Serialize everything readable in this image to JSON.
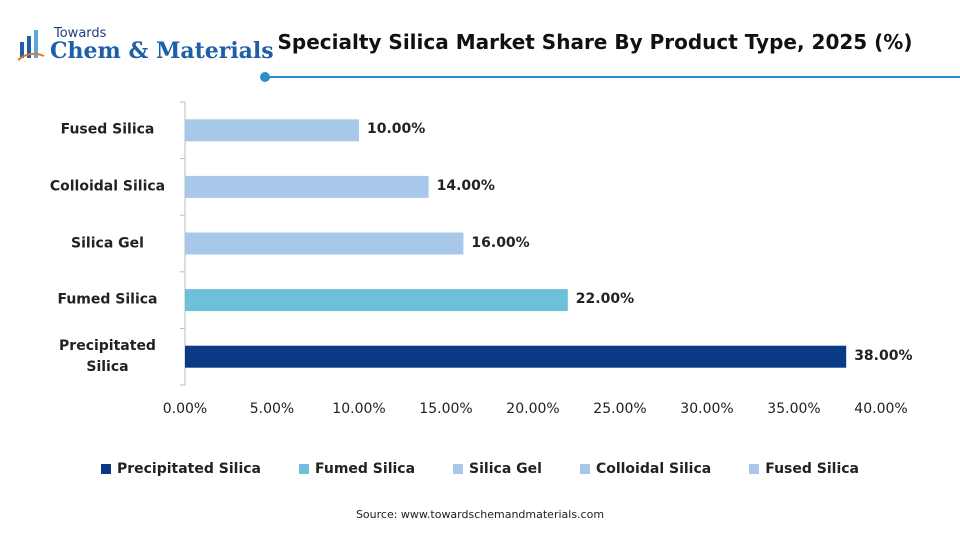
{
  "logo": {
    "line1": "Towards",
    "line2": "Chem & Materials"
  },
  "chart_data": {
    "type": "bar",
    "orientation": "horizontal",
    "title": "Specialty Silica Market Share By Product Type, 2025 (%)",
    "source": "Source: www.towardschemandmaterials.com",
    "categories": [
      "Precipitated Silica",
      "Fumed Silica",
      "Silica Gel",
      "Colloidal Silica",
      "Fused Silica"
    ],
    "values": [
      38,
      22,
      16,
      14,
      10
    ],
    "value_labels": [
      "38.00%",
      "22.00%",
      "16.00%",
      "14.00%",
      "10.00%"
    ],
    "colors": [
      "#0a3a86",
      "#6ec0da",
      "#a8c8ea",
      "#a8c8ea",
      "#a8c8ea"
    ],
    "xlim": [
      0,
      40
    ],
    "xticks": [
      {
        "value": 0,
        "label": "0.00%"
      },
      {
        "value": 5,
        "label": "5.00%"
      },
      {
        "value": 10,
        "label": "10.00%"
      },
      {
        "value": 15,
        "label": "15.00%"
      },
      {
        "value": 20,
        "label": "20.00%"
      },
      {
        "value": 25,
        "label": "25.00%"
      },
      {
        "value": 30,
        "label": "30.00%"
      },
      {
        "value": 35,
        "label": "35.00%"
      },
      {
        "value": 40,
        "label": "40.00%"
      }
    ],
    "legend": "bottom",
    "grid": false
  }
}
